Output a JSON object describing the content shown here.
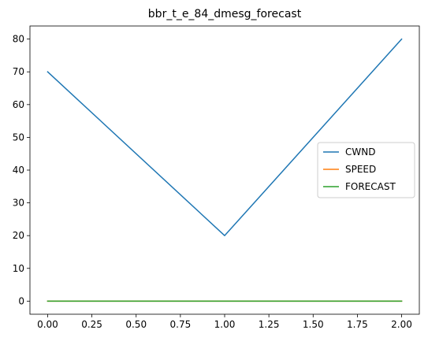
{
  "chart_data": {
    "type": "line",
    "title": "bbr_t_e_84_dmesg_forecast",
    "xlabel": "",
    "ylabel": "",
    "x": [
      0,
      1,
      2
    ],
    "xlim": [
      -0.1,
      2.1
    ],
    "ylim": [
      -4,
      84
    ],
    "xticks": [
      0.0,
      0.25,
      0.5,
      0.75,
      1.0,
      1.25,
      1.5,
      1.75,
      2.0
    ],
    "xtick_labels": [
      "0.00",
      "0.25",
      "0.50",
      "0.75",
      "1.00",
      "1.25",
      "1.50",
      "1.75",
      "2.00"
    ],
    "yticks": [
      0,
      10,
      20,
      30,
      40,
      50,
      60,
      70,
      80
    ],
    "ytick_labels": [
      "0",
      "10",
      "20",
      "30",
      "40",
      "50",
      "60",
      "70",
      "80"
    ],
    "grid": false,
    "legend_position": "center-right",
    "series": [
      {
        "name": "CWND",
        "values": [
          70,
          20,
          80
        ],
        "color": "#1f77b4"
      },
      {
        "name": "SPEED",
        "values": [
          0,
          0,
          0
        ],
        "color": "#ff7f0e"
      },
      {
        "name": "FORECAST",
        "values": [
          0,
          0,
          0
        ],
        "color": "#2ca02c"
      }
    ]
  }
}
